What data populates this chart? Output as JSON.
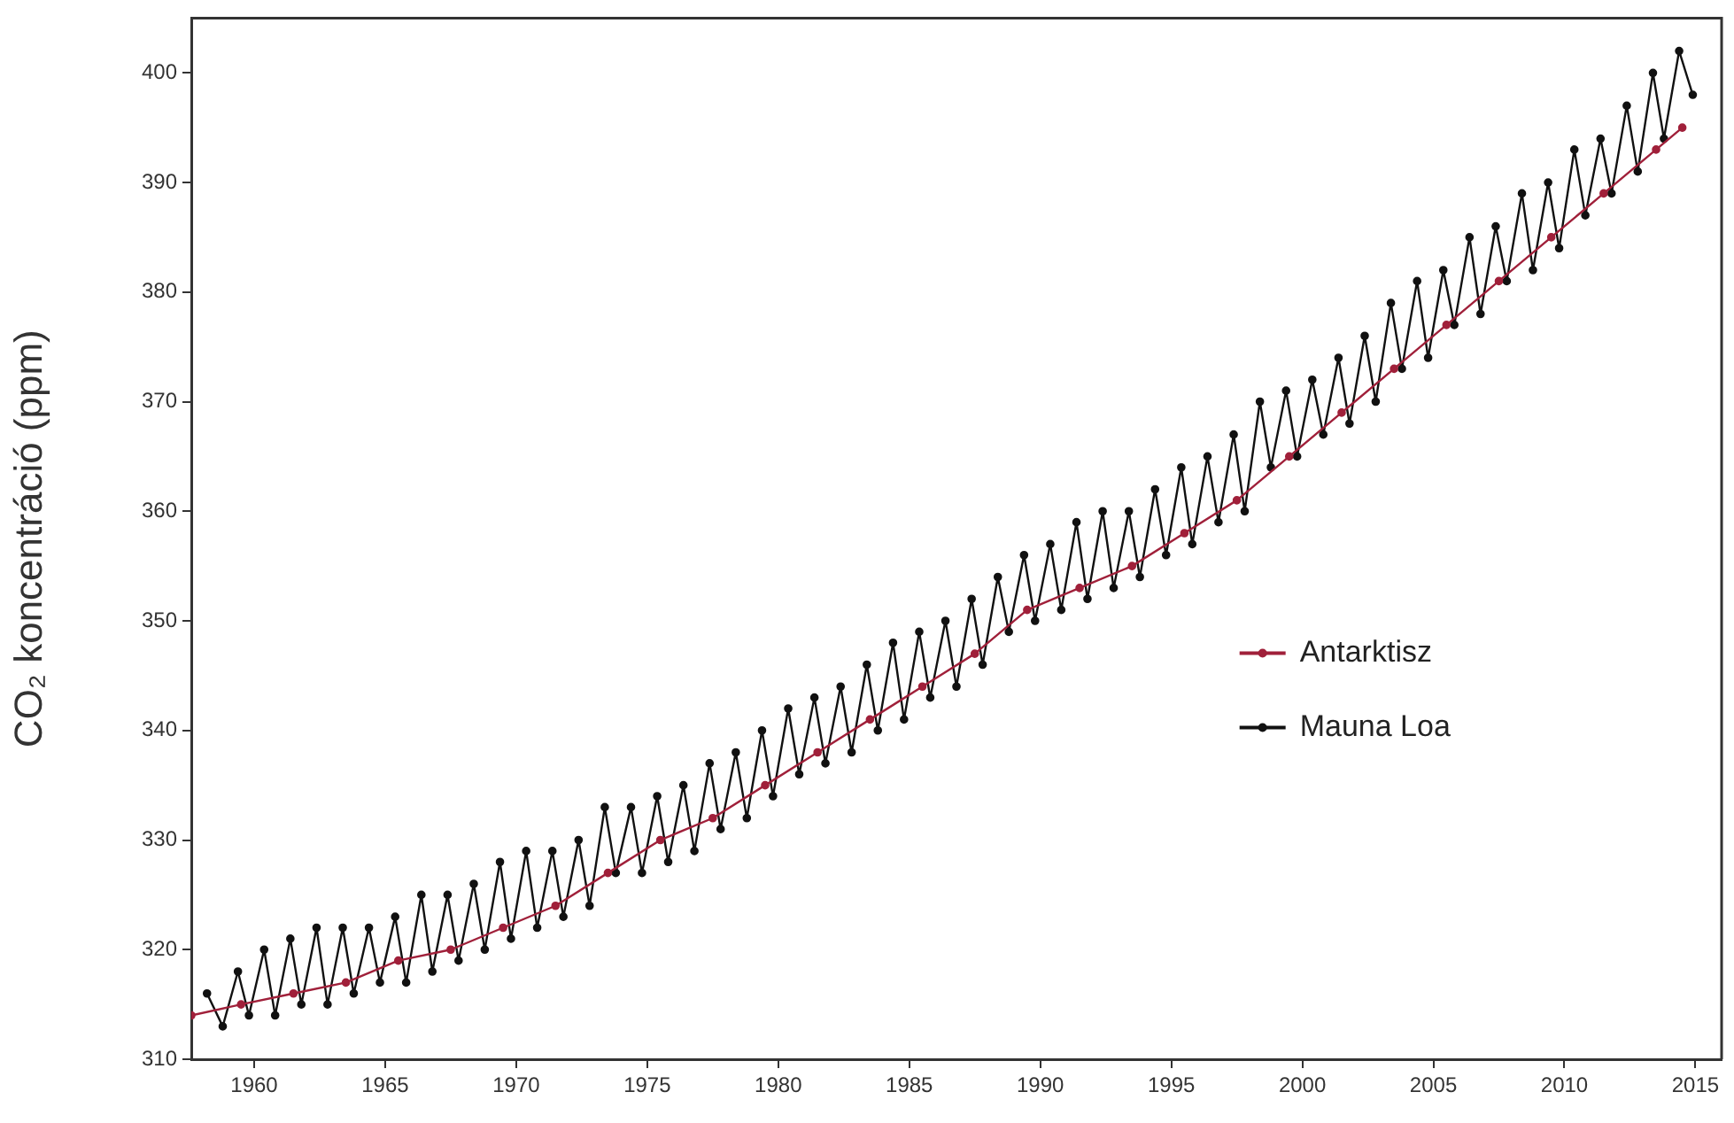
{
  "chart_data": {
    "type": "line",
    "ylabel": "CO₂ koncentráció (ppm)",
    "xlim": [
      1957.6,
      2016
    ],
    "xticks": [
      1960,
      1965,
      1970,
      1975,
      1980,
      1985,
      1990,
      1995,
      2000,
      2005,
      2010,
      2015
    ],
    "ylim": [
      310,
      405
    ],
    "yticks": [
      310,
      320,
      330,
      340,
      350,
      360,
      370,
      380,
      390,
      400
    ],
    "grid": false,
    "legend": "right",
    "marker": "circle",
    "line_style": "solid",
    "series": [
      {
        "name": "Antarktisz",
        "color": "#a0203a",
        "x": [
          1957.6,
          1959.5,
          1961.5,
          1963.5,
          1965.5,
          1967.5,
          1969.5,
          1971.5,
          1973.5,
          1975.5,
          1977.5,
          1979.5,
          1981.5,
          1983.5,
          1985.5,
          1987.5,
          1989.5,
          1991.5,
          1993.5,
          1995.5,
          1997.5,
          1999.5,
          2001.5,
          2003.5,
          2005.5,
          2007.5,
          2009.5,
          2011.5,
          2013.5,
          2014.5
        ],
        "values": [
          314,
          315,
          316,
          317,
          319,
          320,
          322,
          324,
          327,
          330,
          332,
          335,
          338,
          341,
          344,
          347,
          351,
          353,
          355,
          358,
          361,
          365,
          369,
          373,
          377,
          381,
          385,
          389,
          393,
          395
        ]
      },
      {
        "name": "Mauna Loa",
        "color": "#111111",
        "x": [
          1958.2,
          1958.8,
          1959.38,
          1959.8,
          1960.38,
          1960.8,
          1961.38,
          1961.8,
          1962.38,
          1962.8,
          1963.38,
          1963.8,
          1964.38,
          1964.8,
          1965.38,
          1965.8,
          1966.38,
          1966.8,
          1967.38,
          1967.8,
          1968.38,
          1968.8,
          1969.38,
          1969.8,
          1970.38,
          1970.8,
          1971.38,
          1971.8,
          1972.38,
          1972.8,
          1973.38,
          1973.8,
          1974.38,
          1974.8,
          1975.38,
          1975.8,
          1976.38,
          1976.8,
          1977.38,
          1977.8,
          1978.38,
          1978.8,
          1979.38,
          1979.8,
          1980.38,
          1980.8,
          1981.38,
          1981.8,
          1982.38,
          1982.8,
          1983.38,
          1983.8,
          1984.38,
          1984.8,
          1985.38,
          1985.8,
          1986.38,
          1986.8,
          1987.38,
          1987.8,
          1988.38,
          1988.8,
          1989.38,
          1989.8,
          1990.38,
          1990.8,
          1991.38,
          1991.8,
          1992.38,
          1992.8,
          1993.38,
          1993.8,
          1994.38,
          1994.8,
          1995.38,
          1995.8,
          1996.38,
          1996.8,
          1997.38,
          1997.8,
          1998.38,
          1998.8,
          1999.38,
          1999.8,
          2000.38,
          2000.8,
          2001.38,
          2001.8,
          2002.38,
          2002.8,
          2003.38,
          2003.8,
          2004.38,
          2004.8,
          2005.38,
          2005.8,
          2006.38,
          2006.8,
          2007.38,
          2007.8,
          2008.38,
          2008.8,
          2009.38,
          2009.8,
          2010.38,
          2010.8,
          2011.38,
          2011.8,
          2012.38,
          2012.8,
          2013.38,
          2013.8,
          2014.38,
          2014.9
        ],
        "values": [
          316,
          313,
          318,
          314,
          320,
          314,
          321,
          315,
          322,
          315,
          322,
          316,
          322,
          317,
          323,
          317,
          325,
          318,
          325,
          319,
          326,
          320,
          328,
          321,
          329,
          322,
          329,
          323,
          330,
          324,
          333,
          327,
          333,
          327,
          334,
          328,
          335,
          329,
          337,
          331,
          338,
          332,
          340,
          334,
          342,
          336,
          343,
          337,
          344,
          338,
          346,
          340,
          348,
          341,
          349,
          343,
          350,
          344,
          352,
          346,
          354,
          349,
          356,
          350,
          357,
          351,
          359,
          352,
          360,
          353,
          360,
          354,
          362,
          356,
          364,
          357,
          365,
          359,
          367,
          360,
          370,
          364,
          371,
          365,
          372,
          367,
          374,
          368,
          376,
          370,
          379,
          373,
          381,
          374,
          382,
          377,
          385,
          378,
          386,
          381,
          389,
          382,
          390,
          384,
          393,
          387,
          394,
          389,
          397,
          391,
          400,
          394,
          402,
          398
        ]
      }
    ]
  }
}
